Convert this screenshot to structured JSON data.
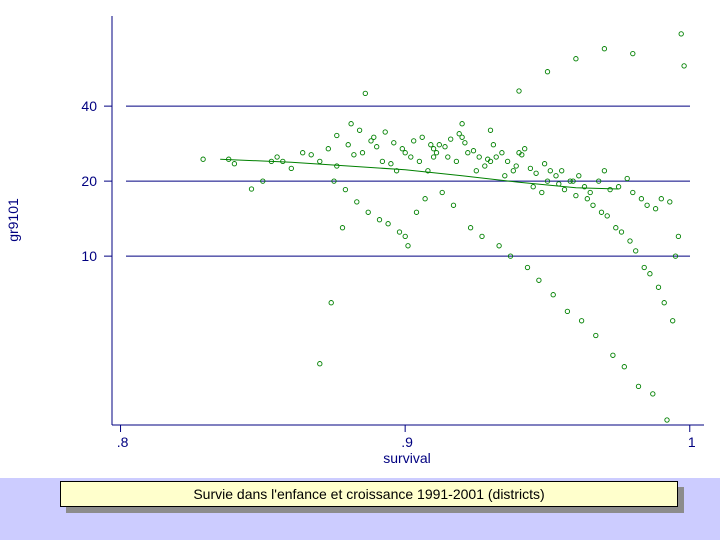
{
  "caption": "Survie dans l'enfance et croissance 1991-2001 (districts)",
  "colors": {
    "axis": "#000080",
    "marker": "#008000",
    "fit_line": "#008000",
    "footer_band": "#ccccff",
    "caption_fill": "#ffffcc"
  },
  "chart_data": {
    "type": "scatter",
    "title": "",
    "xlabel": "survival",
    "ylabel": "gr9101",
    "x_ticks": [
      0.8,
      0.9,
      1.0
    ],
    "x_tick_labels": [
      ".8",
      ".9",
      "1"
    ],
    "y_ticks": [
      10,
      20,
      40
    ],
    "y_tick_labels": [
      "10",
      "20",
      "40"
    ],
    "y_scale": "log",
    "grid": "horizontal lines at y ticks",
    "xlim": [
      0.797,
      1.005
    ],
    "ylim": [
      2.1,
      92
    ],
    "marker": "hollow-circle",
    "fit_line": {
      "type": "smoothed",
      "points": [
        [
          0.835,
          24.5
        ],
        [
          0.86,
          23.8
        ],
        [
          0.88,
          23.0
        ],
        [
          0.9,
          22.2
        ],
        [
          0.92,
          21.0
        ],
        [
          0.94,
          19.8
        ],
        [
          0.96,
          18.8
        ],
        [
          0.975,
          18.6
        ]
      ]
    },
    "series": [
      {
        "x": [
          0.829,
          0.838,
          0.84,
          0.846,
          0.85,
          0.853,
          0.855,
          0.857,
          0.86,
          0.864,
          0.867,
          0.87,
          0.873,
          0.876,
          0.88,
          0.882,
          0.885,
          0.888,
          0.89,
          0.892,
          0.895,
          0.897,
          0.9,
          0.902,
          0.905,
          0.908,
          0.91,
          0.912,
          0.915,
          0.918,
          0.92,
          0.922,
          0.925,
          0.928,
          0.93,
          0.932,
          0.935,
          0.938,
          0.94,
          0.942,
          0.945,
          0.948,
          0.95,
          0.953,
          0.955,
          0.958,
          0.96,
          0.963,
          0.965,
          0.968,
          0.97,
          0.972,
          0.975,
          0.978,
          0.98,
          0.983,
          0.985,
          0.988,
          0.99,
          0.993,
          0.995,
          0.996,
          0.997,
          0.998,
          0.876,
          0.881,
          0.884,
          0.889,
          0.893,
          0.896,
          0.899,
          0.903,
          0.906,
          0.909,
          0.911,
          0.914,
          0.916,
          0.919,
          0.921,
          0.924,
          0.926,
          0.929,
          0.931,
          0.934,
          0.936,
          0.939,
          0.941,
          0.944,
          0.946,
          0.949,
          0.951,
          0.954,
          0.956,
          0.959,
          0.961,
          0.964,
          0.966,
          0.969,
          0.971,
          0.974,
          0.976,
          0.979,
          0.981,
          0.984,
          0.986,
          0.989,
          0.991,
          0.994,
          0.875,
          0.879,
          0.883,
          0.887,
          0.891,
          0.894,
          0.898,
          0.901,
          0.904,
          0.907,
          0.913,
          0.917,
          0.923,
          0.927,
          0.933,
          0.937,
          0.943,
          0.947,
          0.952,
          0.957,
          0.962,
          0.967,
          0.973,
          0.977,
          0.982,
          0.987,
          0.992,
          0.87,
          0.874,
          0.878,
          0.886,
          0.9,
          0.91,
          0.92,
          0.93,
          0.94,
          0.95,
          0.96,
          0.97,
          0.98
        ],
        "y": [
          24.5,
          24.5,
          23.5,
          18.6,
          20.0,
          24.0,
          25.0,
          24.0,
          22.5,
          26.0,
          25.5,
          24.0,
          27.0,
          23.0,
          28.0,
          25.5,
          26.0,
          29.0,
          27.5,
          24.0,
          23.5,
          22.0,
          26.0,
          25.0,
          24.0,
          22.0,
          27.0,
          28.0,
          25.0,
          24.0,
          30.0,
          26.0,
          22.0,
          23.0,
          24.0,
          25.0,
          21.0,
          22.0,
          26.0,
          27.0,
          19.0,
          18.0,
          20.0,
          21.0,
          22.0,
          20.0,
          17.5,
          19.0,
          18.0,
          20.0,
          22.0,
          18.5,
          19.0,
          20.5,
          18.0,
          17.0,
          16.0,
          15.5,
          17.0,
          16.5,
          10.0,
          12.0,
          78.0,
          58.0,
          30.5,
          34.0,
          32.0,
          30.0,
          31.5,
          28.5,
          27.0,
          29.0,
          30.0,
          28.0,
          26.0,
          27.5,
          29.5,
          31.0,
          28.5,
          26.5,
          25.0,
          24.5,
          28.0,
          26.0,
          24.0,
          23.0,
          25.5,
          22.5,
          21.5,
          23.5,
          22.0,
          19.5,
          18.5,
          20.0,
          21.0,
          17.0,
          16.0,
          15.0,
          14.5,
          13.0,
          12.5,
          11.5,
          10.5,
          9.0,
          8.5,
          7.5,
          6.5,
          5.5,
          20.0,
          18.5,
          16.5,
          15.0,
          14.0,
          13.5,
          12.5,
          11.0,
          15.0,
          17.0,
          18.0,
          16.0,
          13.0,
          12.0,
          11.0,
          10.0,
          9.0,
          8.0,
          7.0,
          6.0,
          5.5,
          4.8,
          4.0,
          3.6,
          3.0,
          2.8,
          2.2,
          3.7,
          6.5,
          13.0,
          45.0,
          12.0,
          25.0,
          34.0,
          32.0,
          46.0,
          55.0,
          62.0,
          68.0,
          65.0
        ]
      }
    ]
  }
}
